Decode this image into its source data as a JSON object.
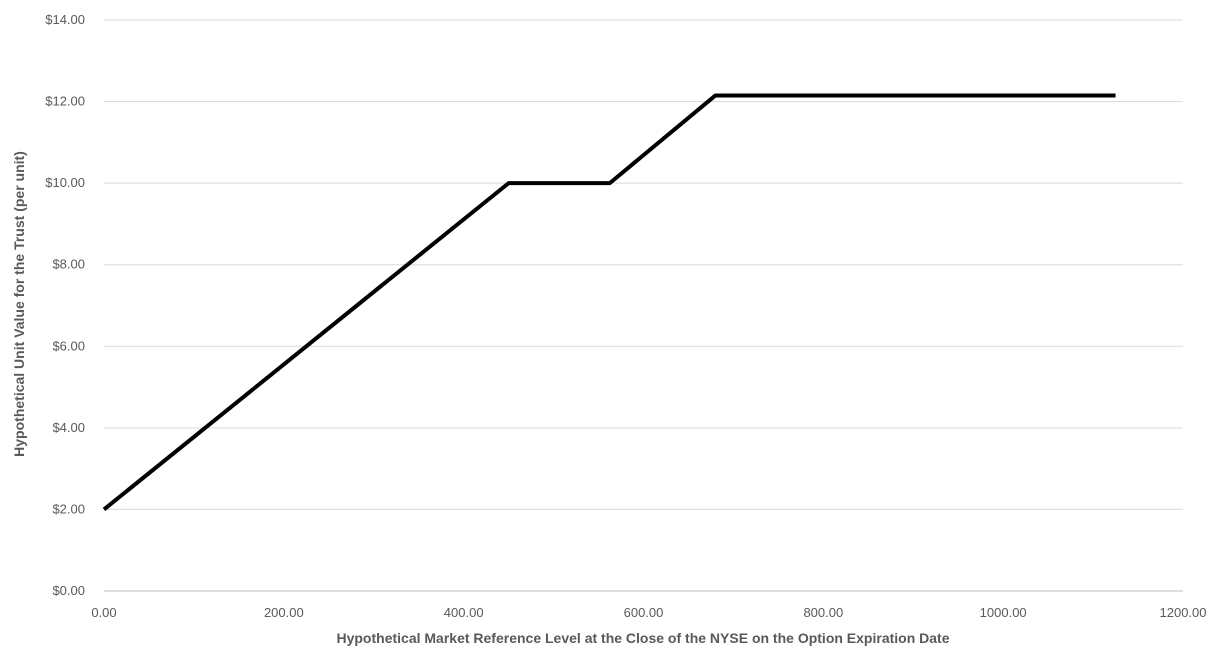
{
  "chart_data": {
    "type": "line",
    "title": "",
    "xlabel": "Hypothetical Market Reference Level at the Close of the NYSE on the Option Expiration Date",
    "ylabel": "Hypothetical Unit Value for the Trust (per unit)",
    "xlim": [
      0,
      1200
    ],
    "ylim": [
      0,
      14
    ],
    "x_ticks": [
      "0.00",
      "200.00",
      "400.00",
      "600.00",
      "800.00",
      "1000.00",
      "1200.00"
    ],
    "y_ticks": [
      "$0.00",
      "$2.00",
      "$4.00",
      "$6.00",
      "$8.00",
      "$10.00",
      "$12.00",
      "$14.00"
    ],
    "grid": true,
    "legend": "none",
    "series": [
      {
        "color": "#000000",
        "x": [
          0,
          450,
          562.5,
          680,
          1125
        ],
        "y": [
          2.0,
          10.0,
          10.0,
          12.15,
          12.15
        ]
      }
    ]
  }
}
